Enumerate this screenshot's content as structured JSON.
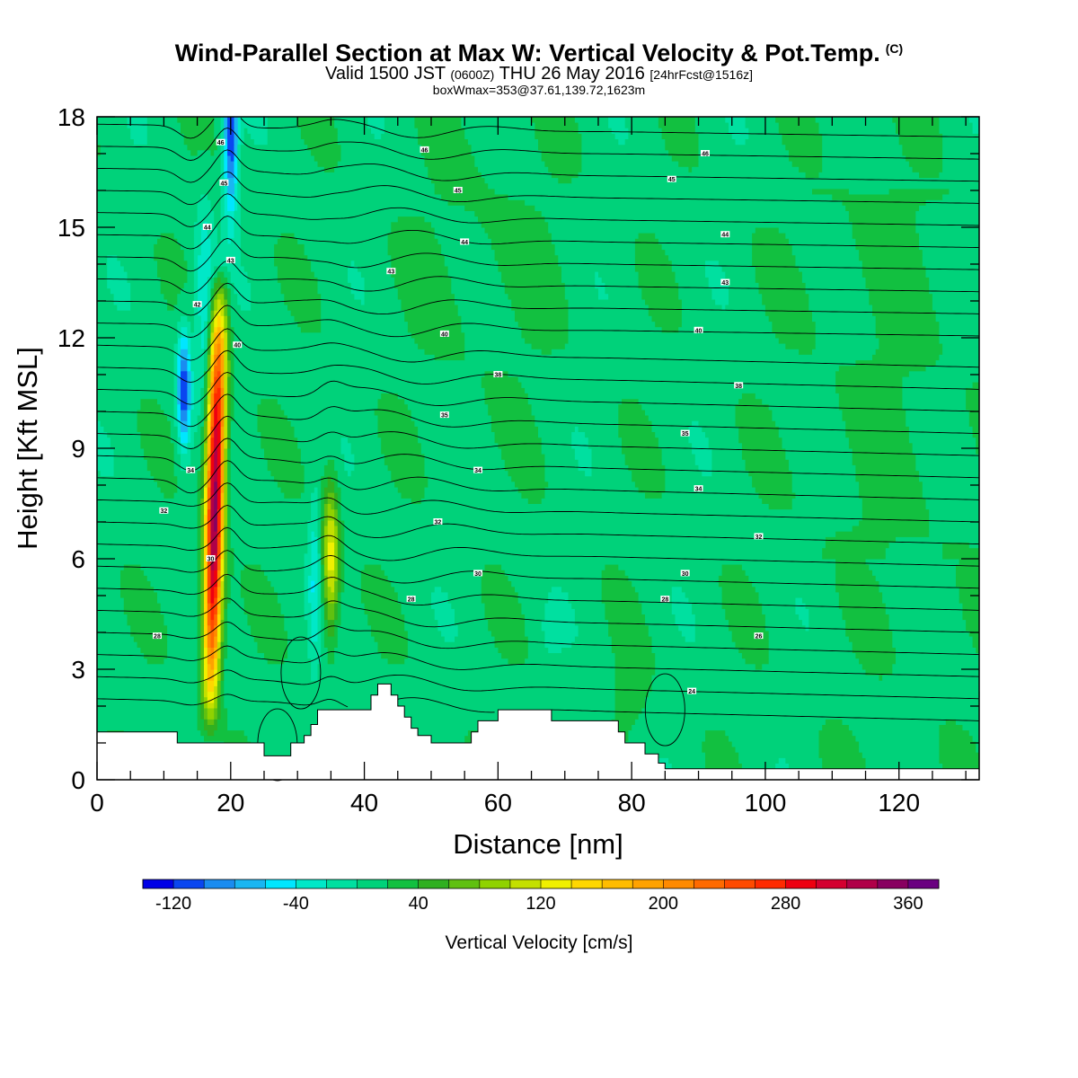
{
  "title": {
    "main": "Wind-Parallel Section at Max W: Vertical Velocity & Pot.Temp.",
    "copyright": "(C)",
    "valid_pre": "Valid 1500 JST",
    "valid_z": "(0600Z)",
    "valid_date": "THU 26 May 2016",
    "valid_fcst": "[24hrFcst@1516z]",
    "box": "boxWmax=353@37.61,139.72,1623m"
  },
  "chart_data": {
    "type": "heatmap",
    "xlabel": "Distance [nm]",
    "ylabel": "Height [Kft MSL]",
    "xlim": [
      0,
      132
    ],
    "ylim": [
      0,
      18
    ],
    "x_ticks": [
      0,
      20,
      40,
      60,
      80,
      100,
      120
    ],
    "y_ticks": [
      0,
      3,
      6,
      9,
      12,
      15,
      18
    ],
    "colorbar": {
      "label": "Vertical Velocity [cm/s]",
      "tick_labels": [
        "-120",
        "-40",
        "40",
        "120",
        "200",
        "280",
        "360"
      ],
      "tick_values": [
        -120,
        -40,
        40,
        120,
        200,
        280,
        360
      ],
      "levels": [
        -140,
        -120,
        -100,
        -80,
        -60,
        -40,
        -20,
        0,
        20,
        40,
        60,
        80,
        100,
        120,
        140,
        160,
        180,
        200,
        220,
        240,
        260,
        280,
        300,
        320,
        340,
        360,
        380
      ],
      "colors": [
        "#0000e6",
        "#0a46f0",
        "#1a8cf0",
        "#19b6f2",
        "#00e6ff",
        "#00e8c8",
        "#00e0a0",
        "#00d27a",
        "#12c040",
        "#30b020",
        "#60c010",
        "#90d200",
        "#c4e000",
        "#f0f000",
        "#ffd700",
        "#ffbc00",
        "#ffa200",
        "#ff8a00",
        "#ff6a00",
        "#ff4a00",
        "#ff2a00",
        "#ee0010",
        "#d40030",
        "#b00048",
        "#880060",
        "#6a0080"
      ]
    },
    "updraft_cores": [
      {
        "x": 19,
        "z_bottom": 1.2,
        "z_top": 14.4,
        "peak_w": 353
      },
      {
        "x": 35,
        "z_bottom": 3.0,
        "z_top": 8.4,
        "peak_w": 130
      }
    ],
    "downdraft_cores": [
      {
        "x": 13,
        "z_bottom": 9.0,
        "z_top": 12.4,
        "min_w": -120
      },
      {
        "x": 20,
        "z_bottom": 14.0,
        "z_top": 18.0,
        "min_w": -120
      }
    ],
    "terrain_nm_kft": [
      [
        0,
        1.3
      ],
      [
        12,
        1.3
      ],
      [
        12,
        1.0
      ],
      [
        25,
        1.0
      ],
      [
        25,
        0.65
      ],
      [
        29,
        0.65
      ],
      [
        29,
        1.0
      ],
      [
        31,
        1.0
      ],
      [
        31,
        1.2
      ],
      [
        32,
        1.2
      ],
      [
        32,
        1.5
      ],
      [
        33,
        1.5
      ],
      [
        33,
        1.9
      ],
      [
        41,
        1.9
      ],
      [
        41,
        2.3
      ],
      [
        42,
        2.3
      ],
      [
        42,
        2.6
      ],
      [
        44,
        2.6
      ],
      [
        44,
        2.3
      ],
      [
        45,
        2.3
      ],
      [
        45,
        2.0
      ],
      [
        46,
        2.0
      ],
      [
        46,
        1.7
      ],
      [
        47,
        1.7
      ],
      [
        47,
        1.4
      ],
      [
        48,
        1.4
      ],
      [
        48,
        1.2
      ],
      [
        50,
        1.2
      ],
      [
        50,
        1.0
      ],
      [
        56,
        1.0
      ],
      [
        56,
        1.3
      ],
      [
        57,
        1.3
      ],
      [
        57,
        1.6
      ],
      [
        60,
        1.6
      ],
      [
        60,
        1.9
      ],
      [
        68,
        1.9
      ],
      [
        68,
        1.6
      ],
      [
        78,
        1.6
      ],
      [
        78,
        1.3
      ],
      [
        79,
        1.3
      ],
      [
        79,
        1.0
      ],
      [
        82,
        1.0
      ],
      [
        82,
        0.7
      ],
      [
        84,
        0.7
      ],
      [
        84,
        0.45
      ],
      [
        85,
        0.45
      ],
      [
        85,
        0.3
      ],
      [
        132,
        0.3
      ]
    ],
    "theta_labels": [
      {
        "x": 18.5,
        "z": 17.3,
        "text": "46"
      },
      {
        "x": 19,
        "z": 16.2,
        "text": "45"
      },
      {
        "x": 16.5,
        "z": 15.0,
        "text": "44"
      },
      {
        "x": 20,
        "z": 14.1,
        "text": "43"
      },
      {
        "x": 15,
        "z": 12.9,
        "text": "42"
      },
      {
        "x": 21,
        "z": 11.8,
        "text": "40"
      },
      {
        "x": 14,
        "z": 8.4,
        "text": "34"
      },
      {
        "x": 10,
        "z": 7.3,
        "text": "32"
      },
      {
        "x": 17,
        "z": 6.0,
        "text": "30"
      },
      {
        "x": 9,
        "z": 3.9,
        "text": "28"
      },
      {
        "x": 49,
        "z": 17.1,
        "text": "46"
      },
      {
        "x": 54,
        "z": 16.0,
        "text": "45"
      },
      {
        "x": 55,
        "z": 14.6,
        "text": "44"
      },
      {
        "x": 44,
        "z": 13.8,
        "text": "43"
      },
      {
        "x": 52,
        "z": 12.1,
        "text": "40"
      },
      {
        "x": 60,
        "z": 11.0,
        "text": "38"
      },
      {
        "x": 52,
        "z": 9.9,
        "text": "35"
      },
      {
        "x": 57,
        "z": 8.4,
        "text": "34"
      },
      {
        "x": 51,
        "z": 7.0,
        "text": "32"
      },
      {
        "x": 57,
        "z": 5.6,
        "text": "30"
      },
      {
        "x": 47,
        "z": 4.9,
        "text": "28"
      },
      {
        "x": 91,
        "z": 17.0,
        "text": "46"
      },
      {
        "x": 86,
        "z": 16.3,
        "text": "45"
      },
      {
        "x": 94,
        "z": 14.8,
        "text": "44"
      },
      {
        "x": 94,
        "z": 13.5,
        "text": "43"
      },
      {
        "x": 90,
        "z": 12.2,
        "text": "40"
      },
      {
        "x": 96,
        "z": 10.7,
        "text": "38"
      },
      {
        "x": 88,
        "z": 9.4,
        "text": "35"
      },
      {
        "x": 90,
        "z": 7.9,
        "text": "34"
      },
      {
        "x": 99,
        "z": 6.6,
        "text": "32"
      },
      {
        "x": 88,
        "z": 5.6,
        "text": "30"
      },
      {
        "x": 85,
        "z": 4.9,
        "text": "28"
      },
      {
        "x": 99,
        "z": 3.9,
        "text": "26"
      },
      {
        "x": 89,
        "z": 2.4,
        "text": "24"
      }
    ]
  }
}
